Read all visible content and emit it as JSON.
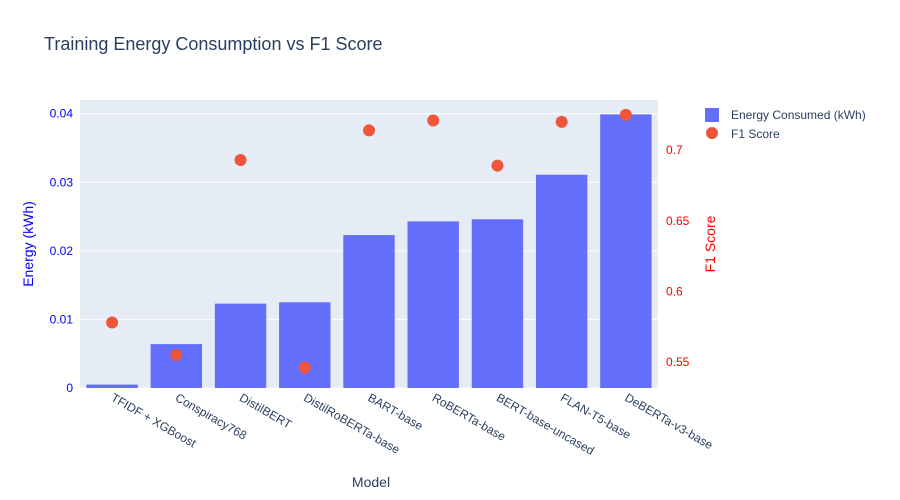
{
  "chart_data": {
    "type": "bar",
    "title": "Training Energy Consumption vs F1 Score",
    "xlabel": "Model",
    "ylabel": "Energy (kWh)",
    "y2label": "F1 Score",
    "ylim": [
      0,
      0.042
    ],
    "y2lim": [
      0.5316,
      0.7355
    ],
    "yticks": [
      0,
      0.01,
      0.02,
      0.03,
      0.04
    ],
    "yticklabels": [
      "0",
      "0.01",
      "0.02",
      "0.03",
      "0.04"
    ],
    "y2ticks": [
      0.55,
      0.6,
      0.65,
      0.7
    ],
    "y2ticklabels": [
      "0.55",
      "0.6",
      "0.65",
      "0.7"
    ],
    "categories": [
      "TFIDF + XGBoost",
      "Conspiracy768",
      "DistilBERT",
      "DistilRoBERTa-base",
      "BART-base",
      "RoBERTa-base",
      "BERT-base-uncased",
      "FLAN-T5-base",
      "DeBERTa-v3-base"
    ],
    "series": [
      {
        "name": "Energy Consumed (kWh)",
        "type": "bar",
        "axis": "y",
        "color": "#636efa",
        "values": [
          0.0005,
          0.0064,
          0.0123,
          0.0125,
          0.0223,
          0.0243,
          0.0246,
          0.0311,
          0.0399
        ]
      },
      {
        "name": "F1 Score",
        "type": "scatter",
        "axis": "y2",
        "color": "#ef553b",
        "values": [
          0.578,
          0.555,
          0.693,
          0.546,
          0.714,
          0.721,
          0.689,
          0.72,
          0.725
        ]
      }
    ],
    "grid": true,
    "legend": "top-right",
    "colors": {
      "plot_bg": "#e5ecf6",
      "grid": "#ffffff",
      "text": "#2a3f5f",
      "left_axis": "#0000ff",
      "right_axis": "#ff0000"
    }
  }
}
